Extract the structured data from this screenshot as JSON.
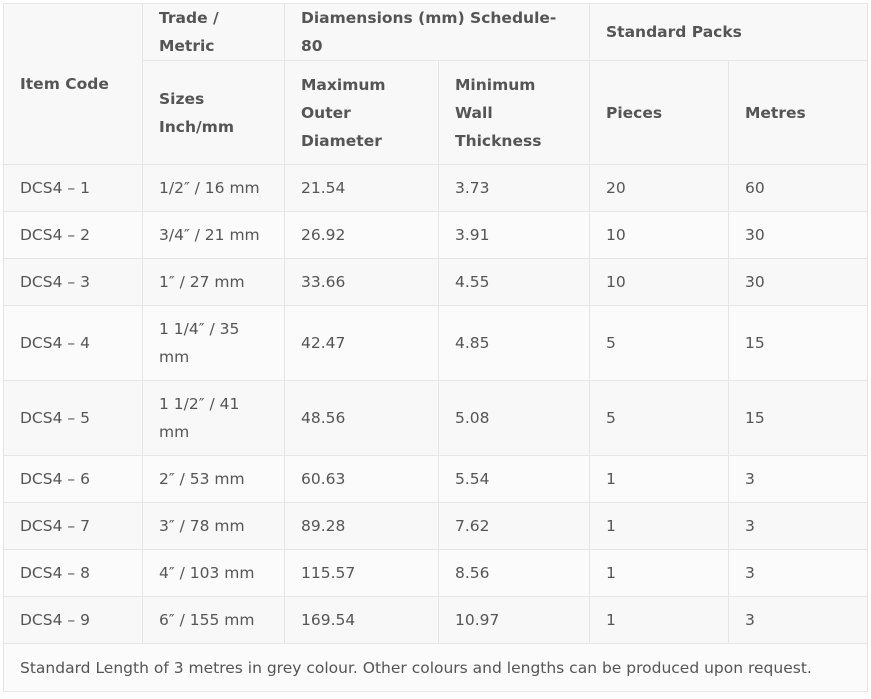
{
  "headers": {
    "item_code": "Item Code",
    "trade_metric": "Trade / Metric",
    "dimensions": "Diamensions (mm) Schedule-80",
    "standard_packs": "Standard Packs",
    "sizes": "Sizes Inch/mm",
    "max_outer_diameter": "Maximum Outer Diameter",
    "min_wall_thickness": "Minimum Wall Thickness",
    "pieces": "Pieces",
    "metres": "Metres"
  },
  "rows": [
    {
      "code": "DCS4 – 1",
      "size": "1/2″ / 16 mm",
      "od": "21.54",
      "wall": "3.73",
      "pieces": "20",
      "metres": "60"
    },
    {
      "code": "DCS4 – 2",
      "size": "3/4″ / 21 mm",
      "od": "26.92",
      "wall": "3.91",
      "pieces": "10",
      "metres": "30"
    },
    {
      "code": "DCS4 – 3",
      "size": "1″ / 27 mm",
      "od": "33.66",
      "wall": "4.55",
      "pieces": "10",
      "metres": "30"
    },
    {
      "code": "DCS4 – 4",
      "size": "1 1/4″ / 35 mm",
      "od": "42.47",
      "wall": "4.85",
      "pieces": "5",
      "metres": "15"
    },
    {
      "code": "DCS4 – 5",
      "size": "1 1/2″ / 41 mm",
      "od": "48.56",
      "wall": "5.08",
      "pieces": "5",
      "metres": "15"
    },
    {
      "code": "DCS4 – 6",
      "size": "2″ / 53 mm",
      "od": "60.63",
      "wall": "5.54",
      "pieces": "1",
      "metres": "3"
    },
    {
      "code": "DCS4 – 7",
      "size": "3″ / 78 mm",
      "od": "89.28",
      "wall": "7.62",
      "pieces": "1",
      "metres": "3"
    },
    {
      "code": "DCS4 – 8",
      "size": "4″ / 103 mm",
      "od": "115.57",
      "wall": "8.56",
      "pieces": "1",
      "metres": "3"
    },
    {
      "code": "DCS4 – 9",
      "size": "6″ / 155 mm",
      "od": "169.54",
      "wall": "10.97",
      "pieces": "1",
      "metres": "3"
    }
  ],
  "footer_note": "Standard Length of 3 metres in grey colour. Other colours and lengths can be produced upon request."
}
